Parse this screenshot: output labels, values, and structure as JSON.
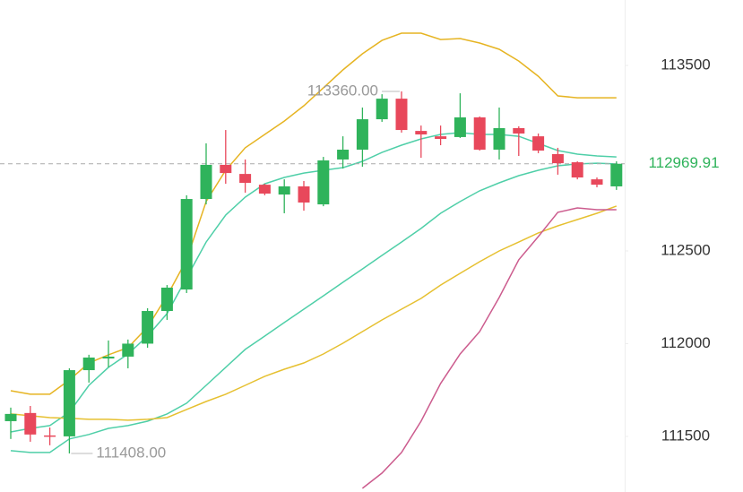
{
  "chart_data": {
    "type": "candlestick",
    "up_color": "#2fb35b",
    "down_color": "#e8485b",
    "open": [
      111582,
      111626,
      111505,
      111500,
      111857,
      111920,
      111930,
      112000,
      112176,
      112292,
      112780,
      112964,
      112915,
      112857,
      112804,
      112848,
      112751,
      112993,
      113046,
      113210,
      113321,
      113147,
      113118,
      113114,
      113220,
      113046,
      113162,
      113118,
      113022,
      112978,
      112886,
      112848
    ],
    "high": [
      111655,
      111664,
      111548,
      111867,
      111940,
      112017,
      112022,
      112191,
      112316,
      112800,
      113080,
      113152,
      112993,
      112862,
      112886,
      112877,
      113007,
      113118,
      113273,
      113345,
      113360,
      113176,
      113176,
      113350,
      113225,
      113273,
      113172,
      113133,
      113056,
      112983,
      112896,
      112983
    ],
    "low": [
      111486,
      111471,
      111452,
      111408,
      111790,
      111872,
      111867,
      111978,
      112128,
      112273,
      112751,
      112862,
      112814,
      112800,
      112703,
      112717,
      112741,
      112944,
      112954,
      113196,
      113138,
      113002,
      113070,
      113109,
      113041,
      112993,
      113012,
      113027,
      112911,
      112886,
      112843,
      112829
    ],
    "close": [
      111621,
      111510,
      111500,
      111857,
      111925,
      111930,
      112000,
      112176,
      112302,
      112780,
      112964,
      112920,
      112867,
      112809,
      112848,
      112761,
      112988,
      113046,
      113210,
      113321,
      113152,
      113128,
      113104,
      113220,
      113046,
      113162,
      113133,
      113041,
      112973,
      112896,
      112857,
      112969.91
    ],
    "lines": [
      {
        "color": "#e6b422",
        "values": [
          111746,
          111727,
          111727,
          111804,
          111896,
          111940,
          111978,
          112089,
          112258,
          112452,
          112766,
          112935,
          113056,
          113128,
          113200,
          113283,
          113379,
          113476,
          113563,
          113635,
          113674,
          113674,
          113640,
          113645,
          113621,
          113587,
          113524,
          113442,
          113336,
          113326,
          113326,
          113326
        ]
      },
      {
        "color": "#4fcfa8",
        "values": [
          111524,
          111543,
          111558,
          111630,
          111775,
          111872,
          111944,
          112041,
          112162,
          112355,
          112548,
          112693,
          112790,
          112862,
          112896,
          112920,
          112935,
          112949,
          112983,
          113031,
          113070,
          113104,
          113128,
          113138,
          113128,
          113128,
          113118,
          113080,
          113041,
          113022,
          113012,
          113007
        ]
      },
      {
        "color": "#4fcfa8",
        "values": [
          111423,
          111413,
          111413,
          111486,
          111510,
          111543,
          111558,
          111582,
          111621,
          111679,
          111775,
          111872,
          111969,
          112041,
          112114,
          112186,
          112258,
          112331,
          112403,
          112476,
          112548,
          112621,
          112703,
          112766,
          112824,
          112867,
          112906,
          112935,
          112959,
          112969,
          112973,
          112969
        ]
      },
      {
        "color": "#e6c030",
        "values": [
          111621,
          111611,
          111601,
          111597,
          111592,
          111592,
          111587,
          111592,
          111601,
          111645,
          111688,
          111727,
          111775,
          111824,
          111862,
          111896,
          111944,
          112002,
          112065,
          112128,
          112186,
          112244,
          112316,
          112379,
          112442,
          112500,
          112548,
          112597,
          112635,
          112669,
          112703,
          112742
        ]
      },
      {
        "color": "#cc5c8e",
        "values": [
          null,
          null,
          null,
          null,
          null,
          null,
          null,
          null,
          null,
          null,
          null,
          null,
          null,
          null,
          null,
          null,
          null,
          null,
          111220,
          111302,
          111413,
          111582,
          111785,
          111944,
          112065,
          112249,
          112452,
          112577,
          112708,
          112732,
          112722,
          112722
        ]
      }
    ],
    "ylim": [
      111200,
      113853
    ],
    "yticks": [
      111500,
      112000,
      112500,
      113500
    ],
    "max_marker": {
      "value": 113360,
      "label": "113360.00"
    },
    "min_marker": {
      "value": 111408,
      "label": "111408.00"
    },
    "last_price": {
      "value": 112969.91,
      "label": "112969.91"
    }
  }
}
